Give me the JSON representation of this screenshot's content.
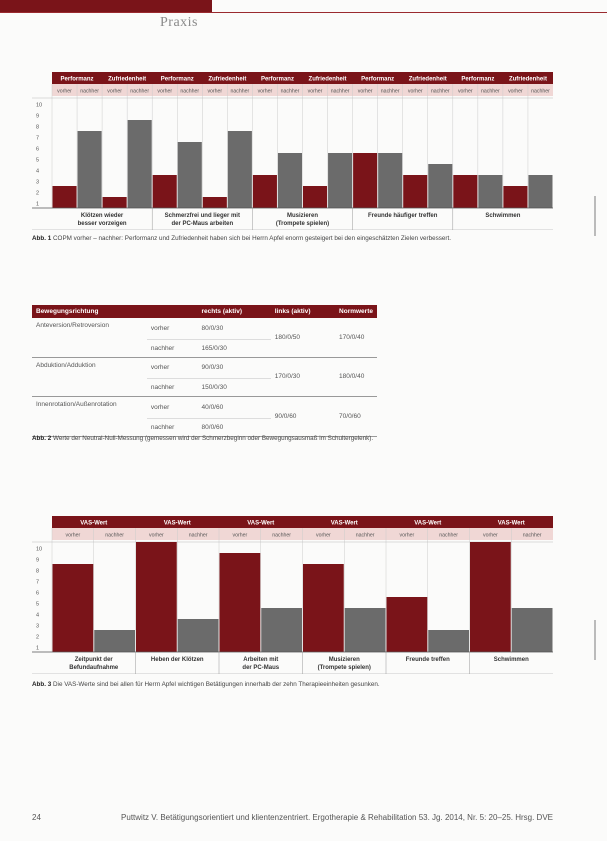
{
  "header": {
    "title": "Praxis"
  },
  "figure1": {
    "group_labels": [
      "Performanz",
      "Zufriedenheit",
      "Performanz",
      "Zufriedenheit",
      "Performanz",
      "Zufriedenheit",
      "Performanz",
      "Zufriedenheit",
      "Performanz",
      "Zufriedenheit"
    ],
    "sub_labels": [
      "vorher",
      "nachher"
    ],
    "y_ticks": [
      "10",
      "9",
      "8",
      "7",
      "6",
      "5",
      "4",
      "3",
      "2",
      "1"
    ],
    "category_labels": [
      "Klötzen wieder\nbesser vorzeigen",
      "Schmerzfrei und lieger mit\nder PC-Maus arbeiten",
      "Musizieren\n(Trompete spielen)",
      "Freunde häufiger treffen",
      "Schwimmen"
    ],
    "caption_label": "Abb. 1",
    "caption_text": "COPM vorher – nachher: Performanz und Zufriedenheit haben sich bei Herrn Apfel enorm gesteigert bei den eingeschätzten Zielen verbessert."
  },
  "chart_data": [
    {
      "type": "bar",
      "title": "",
      "ylim": [
        0,
        10
      ],
      "categories": [
        "Klötzen wieder besser vorzeigen",
        "Schmerzfrei und lieger mit der PC-Maus arbeiten",
        "Musizieren (Trompete spielen)",
        "Freunde häufiger treffen",
        "Schwimmen"
      ],
      "series": [
        {
          "name": "Performanz vorher",
          "values": [
            2,
            1,
            3,
            2,
            3
          ]
        },
        {
          "name": "Performanz nachher",
          "values": [
            7,
            6,
            5,
            5,
            3
          ]
        },
        {
          "name": "Zufriedenheit vorher",
          "values": [
            1,
            1,
            2,
            5,
            3
          ]
        },
        {
          "name": "Zufriedenheit nachher",
          "values": [
            8,
            7,
            5,
            4,
            2
          ]
        }
      ],
      "bars": [
        2,
        7,
        1,
        8,
        3,
        6,
        1,
        7,
        3,
        5,
        2,
        5,
        5,
        5,
        3,
        4,
        3,
        3,
        2,
        3
      ],
      "bar_colors": [
        "#7a1419",
        "#6b6b6b"
      ]
    },
    {
      "type": "bar",
      "title": "",
      "ylim": [
        0,
        10
      ],
      "categories": [
        "Zeitpunkt der Befundaufnahme",
        "Heben der Klötzen",
        "Arbeiten mit der PC-Maus",
        "Musizieren (Trompete spielen)",
        "Freunde treffen",
        "Schwimmen"
      ],
      "series": [
        {
          "name": "VAS-Wert vorher",
          "values": [
            8,
            10,
            9,
            8,
            5,
            10
          ]
        },
        {
          "name": "VAS-Wert nachher",
          "values": [
            2,
            3,
            4,
            4,
            2,
            4
          ]
        }
      ],
      "bar_colors": [
        "#7a1419",
        "#6b6b6b"
      ]
    }
  ],
  "table": {
    "headers": [
      "Bewegungsrichtung",
      "rechts (aktiv)",
      "links (aktiv)",
      "Normwerte"
    ],
    "rows": [
      {
        "dir": "Anteversion/Retroversion",
        "when1": "vorher",
        "val1": "80/0/30",
        "when2": "nachher",
        "val2": "165/0/30",
        "links": "180/0/50",
        "norm": "170/0/40"
      },
      {
        "dir": "Abduktion/Adduktion",
        "when1": "vorher",
        "val1": "90/0/30",
        "when2": "nachher",
        "val2": "150/0/30",
        "links": "170/0/30",
        "norm": "180/0/40"
      },
      {
        "dir": "Innenrotation/Außenrotation",
        "when1": "vorher",
        "val1": "40/0/60",
        "when2": "nachher",
        "val2": "80/0/60",
        "links": "90/0/60",
        "norm": "70/0/60"
      }
    ],
    "caption_label": "Abb. 2",
    "caption_text": "Werte der Neutral-Null-Messung (gemessen wird der Schmerzbeginn oder Bewegungsausmaß im Schultergelenk)."
  },
  "figure3": {
    "group_label": "VAS-Wert",
    "sub_labels": [
      "vorher",
      "nachher"
    ],
    "y_ticks": [
      "10",
      "9",
      "8",
      "7",
      "6",
      "5",
      "4",
      "3",
      "2",
      "1"
    ],
    "category_labels": [
      "Zeitpunkt der\nBefundaufnahme",
      "Heben der Klötzen",
      "Arbeiten mit\nder PC-Maus",
      "Musizieren\n(Trompete spielen)",
      "Freunde treffen",
      "Schwimmen"
    ],
    "caption_label": "Abb. 3",
    "caption_text": "Die VAS-Werte sind bei allen für Herrn Apfel wichtigen Betätigungen innerhalb der zehn Therapieeinheiten gesunken."
  },
  "footer": {
    "page": "24",
    "citation": "Puttwitz V. Betätigungsorientiert und klientenzentriert. Ergotherapie & Rehabilitation 53. Jg. 2014, Nr. 5: 20–25. Hrsg. DVE"
  }
}
